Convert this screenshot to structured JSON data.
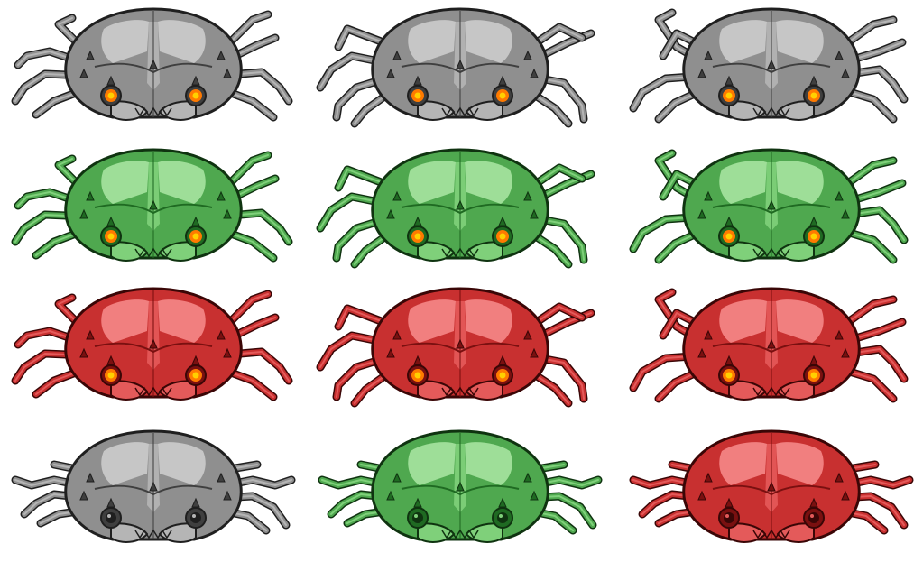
{
  "sprite_sheet": {
    "rows": 4,
    "columns": 3,
    "palettes": {
      "gray": {
        "body": "#8f8f8f",
        "light": "#d8d8d8",
        "mid": "#b5b5b5",
        "dark": "#3f3f3f",
        "outline": "#1f1f1f"
      },
      "green": {
        "body": "#4fa84f",
        "light": "#b8f0b0",
        "mid": "#7fd07a",
        "dark": "#1f6a22",
        "outline": "#0f3310"
      },
      "red": {
        "body": "#c83030",
        "light": "#ff9a9a",
        "mid": "#e45a5a",
        "dark": "#7a1010",
        "outline": "#3a0606"
      }
    },
    "eye_glow": "#ff7a00",
    "eye_core": "#ffd000",
    "frames": [
      {
        "palette": "gray",
        "pose": "a",
        "eyes": "lit"
      },
      {
        "palette": "gray",
        "pose": "b",
        "eyes": "lit"
      },
      {
        "palette": "gray",
        "pose": "c",
        "eyes": "lit"
      },
      {
        "palette": "green",
        "pose": "a",
        "eyes": "lit"
      },
      {
        "palette": "green",
        "pose": "b",
        "eyes": "lit"
      },
      {
        "palette": "green",
        "pose": "c",
        "eyes": "lit"
      },
      {
        "palette": "red",
        "pose": "a",
        "eyes": "lit"
      },
      {
        "palette": "red",
        "pose": "b",
        "eyes": "lit"
      },
      {
        "palette": "red",
        "pose": "c",
        "eyes": "lit"
      },
      {
        "palette": "gray",
        "pose": "d",
        "eyes": "dark"
      },
      {
        "palette": "green",
        "pose": "d",
        "eyes": "dark"
      },
      {
        "palette": "red",
        "pose": "d",
        "eyes": "dark"
      }
    ]
  }
}
